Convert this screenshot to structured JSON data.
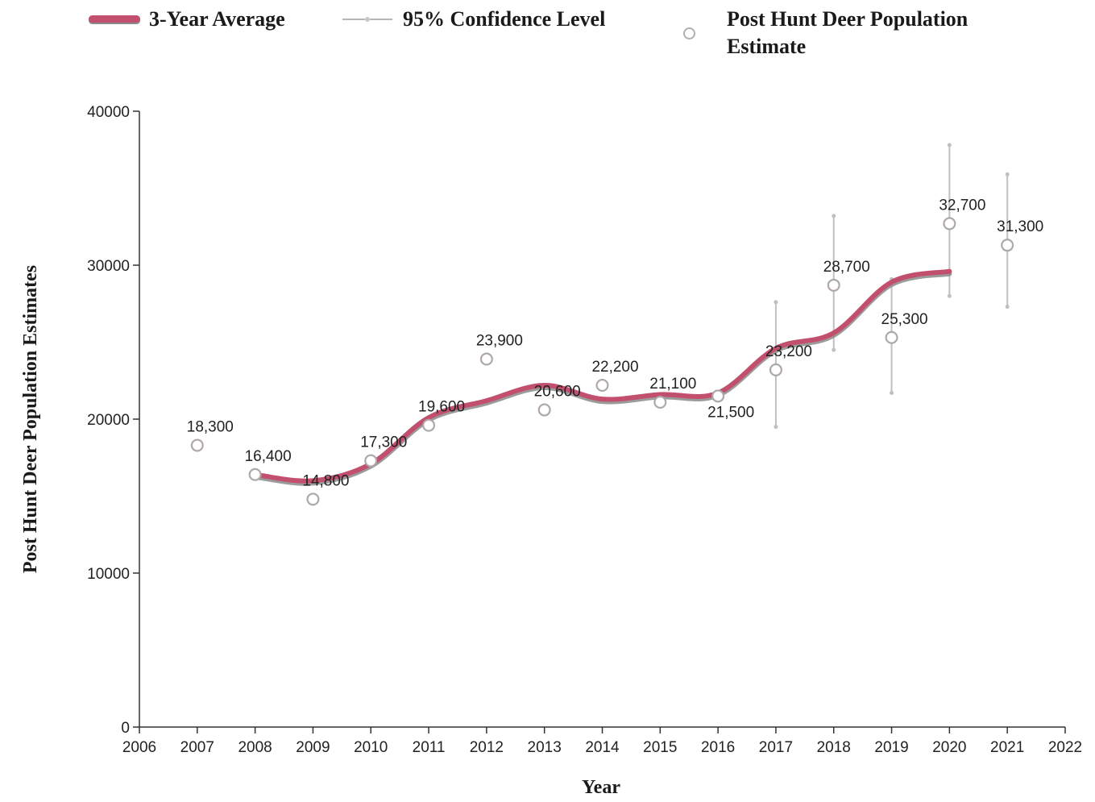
{
  "legend": {
    "avg_label": "3-Year Average",
    "ci_label": "95% Confidence Level",
    "points_label_line1": "Post Hunt Deer Population",
    "points_label_line2": "Estimate"
  },
  "colors": {
    "average_line": "#c24f6d",
    "average_shadow": "#8a8a8a",
    "confidence": "#c0c0c0",
    "marker_outline": "#a8a8a8",
    "marker_fill": "#ffffff",
    "marker_inner": "#e8b4c0"
  },
  "chart_data": {
    "type": "line",
    "title": "",
    "xlabel": "Year",
    "ylabel": "Post Hunt Deer Population Estimates",
    "xlim": [
      2006,
      2022
    ],
    "ylim": [
      0,
      40000
    ],
    "x_ticks": [
      2006,
      2007,
      2008,
      2009,
      2010,
      2011,
      2012,
      2013,
      2014,
      2015,
      2016,
      2017,
      2018,
      2019,
      2020,
      2021,
      2022
    ],
    "y_ticks": [
      0,
      10000,
      20000,
      30000,
      40000
    ],
    "grid": false,
    "legend_position": "top",
    "series": [
      {
        "name": "Post Hunt Deer Population Estimate",
        "kind": "points",
        "x": [
          2007,
          2008,
          2009,
          2010,
          2011,
          2012,
          2013,
          2014,
          2015,
          2016,
          2017,
          2018,
          2019,
          2020,
          2021
        ],
        "y": [
          18300,
          16400,
          14800,
          17300,
          19600,
          23900,
          20600,
          22200,
          21100,
          21500,
          23200,
          28700,
          25300,
          32700,
          31300
        ],
        "labels": [
          "18,300",
          "16,400",
          "14,800",
          "17,300",
          "19,600",
          "23,900",
          "20,600",
          "22,200",
          "21,100",
          "21,500",
          "23,200",
          "28,700",
          "25,300",
          "32,700",
          "31,300"
        ]
      },
      {
        "name": "3-Year Average",
        "kind": "smooth-line",
        "x": [
          2008,
          2009,
          2010,
          2011,
          2012,
          2013,
          2014,
          2015,
          2016,
          2017,
          2018,
          2019,
          2020
        ],
        "y": [
          16400,
          16000,
          17100,
          20100,
          21200,
          22200,
          21300,
          21600,
          21700,
          24600,
          25600,
          28900,
          29600
        ]
      },
      {
        "name": "95% Confidence Level",
        "kind": "error-bars",
        "x": [
          2017,
          2018,
          2019,
          2020,
          2021
        ],
        "low": [
          19500,
          24500,
          21700,
          28000,
          27300
        ],
        "high": [
          27600,
          33200,
          29100,
          37800,
          35900
        ]
      }
    ]
  }
}
